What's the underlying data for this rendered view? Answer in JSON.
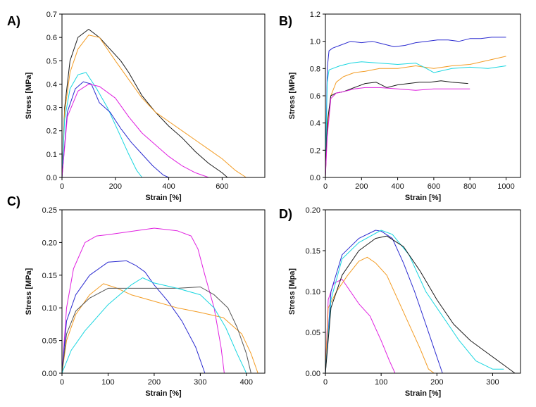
{
  "chart_data": [
    {
      "panel_label": "A)",
      "type": "line",
      "xlabel": "Strain [%]",
      "ylabel": "Stress [MPa]",
      "xlim": [
        0,
        760
      ],
      "ylim": [
        0,
        0.7
      ],
      "xticks": [
        0,
        200,
        400,
        600
      ],
      "yticks": [
        0.0,
        0.1,
        0.2,
        0.3,
        0.4,
        0.5,
        0.6,
        0.7
      ],
      "ytick_labels": [
        "0.0",
        "0.1",
        "0.2",
        "0.3",
        "0.4",
        "0.5",
        "0.6",
        "0.7"
      ],
      "series": [
        {
          "name": "black",
          "color": "#1a1a1a",
          "x": [
            0,
            10,
            30,
            60,
            100,
            140,
            180,
            220,
            250,
            300,
            350,
            400,
            450,
            500,
            550,
            600,
            620
          ],
          "y": [
            0,
            0.3,
            0.5,
            0.6,
            0.635,
            0.6,
            0.55,
            0.5,
            0.45,
            0.35,
            0.28,
            0.22,
            0.17,
            0.11,
            0.06,
            0.02,
            0
          ]
        },
        {
          "name": "orange",
          "color": "#f39c24",
          "x": [
            0,
            10,
            30,
            60,
            100,
            140,
            200,
            250,
            300,
            350,
            400,
            450,
            500,
            550,
            600,
            650,
            690
          ],
          "y": [
            0,
            0.28,
            0.45,
            0.55,
            0.61,
            0.6,
            0.5,
            0.42,
            0.34,
            0.28,
            0.24,
            0.2,
            0.16,
            0.12,
            0.08,
            0.03,
            0
          ]
        },
        {
          "name": "cyan",
          "color": "#19d6e0",
          "x": [
            0,
            10,
            30,
            60,
            90,
            130,
            170,
            210,
            250,
            280,
            300
          ],
          "y": [
            0,
            0.25,
            0.38,
            0.44,
            0.45,
            0.38,
            0.3,
            0.2,
            0.1,
            0.03,
            0
          ]
        },
        {
          "name": "blue",
          "color": "#2b2bd0",
          "x": [
            0,
            20,
            50,
            80,
            110,
            140,
            180,
            220,
            260,
            300,
            340,
            380,
            400
          ],
          "y": [
            0,
            0.28,
            0.38,
            0.41,
            0.4,
            0.32,
            0.28,
            0.21,
            0.15,
            0.1,
            0.05,
            0.01,
            0
          ]
        },
        {
          "name": "magenta",
          "color": "#e020e0",
          "x": [
            0,
            20,
            60,
            100,
            140,
            200,
            250,
            300,
            350,
            400,
            450,
            500,
            550
          ],
          "y": [
            0,
            0.26,
            0.37,
            0.4,
            0.39,
            0.34,
            0.26,
            0.19,
            0.14,
            0.09,
            0.05,
            0.02,
            0
          ]
        }
      ]
    },
    {
      "panel_label": "B)",
      "type": "line",
      "xlabel": "Strain [%]",
      "ylabel": "Stress [MPa]",
      "xlim": [
        0,
        1080
      ],
      "ylim": [
        0,
        1.2
      ],
      "xticks": [
        0,
        200,
        400,
        600,
        800,
        1000
      ],
      "yticks": [
        0.0,
        0.2,
        0.4,
        0.6,
        0.8,
        1.0,
        1.2
      ],
      "ytick_labels": [
        "0.0",
        "0.2",
        "0.4",
        "0.6",
        "0.8",
        "1.0",
        "1.2"
      ],
      "series": [
        {
          "name": "blue",
          "color": "#2b2bd0",
          "x": [
            0,
            10,
            20,
            40,
            80,
            140,
            200,
            260,
            320,
            380,
            440,
            500,
            560,
            620,
            680,
            740,
            800,
            860,
            920,
            1000
          ],
          "y": [
            0,
            0.8,
            0.93,
            0.95,
            0.97,
            1.0,
            0.99,
            1.0,
            0.98,
            0.96,
            0.97,
            0.99,
            1.0,
            1.01,
            1.01,
            1.0,
            1.02,
            1.02,
            1.03,
            1.03
          ]
        },
        {
          "name": "orange",
          "color": "#f39c24",
          "x": [
            0,
            10,
            30,
            60,
            100,
            160,
            220,
            300,
            400,
            500,
            600,
            700,
            800,
            900,
            1000
          ],
          "y": [
            0,
            0.35,
            0.6,
            0.7,
            0.74,
            0.77,
            0.78,
            0.8,
            0.8,
            0.82,
            0.8,
            0.82,
            0.83,
            0.86,
            0.89
          ]
        },
        {
          "name": "cyan",
          "color": "#19d6e0",
          "x": [
            0,
            10,
            20,
            40,
            80,
            140,
            200,
            300,
            400,
            500,
            560,
            600,
            700,
            800,
            900,
            1000
          ],
          "y": [
            0,
            0.7,
            0.79,
            0.8,
            0.82,
            0.84,
            0.85,
            0.84,
            0.83,
            0.84,
            0.8,
            0.77,
            0.8,
            0.81,
            0.8,
            0.82
          ]
        },
        {
          "name": "black",
          "color": "#1a1a1a",
          "x": [
            0,
            10,
            30,
            60,
            100,
            160,
            220,
            280,
            340,
            400,
            460,
            520,
            580,
            640,
            700,
            790
          ],
          "y": [
            0,
            0.4,
            0.6,
            0.62,
            0.63,
            0.66,
            0.69,
            0.7,
            0.66,
            0.68,
            0.69,
            0.7,
            0.7,
            0.71,
            0.7,
            0.69
          ]
        },
        {
          "name": "magenta",
          "color": "#e020e0",
          "x": [
            0,
            10,
            30,
            60,
            100,
            160,
            220,
            300,
            400,
            500,
            600,
            700,
            800
          ],
          "y": [
            0,
            0.3,
            0.58,
            0.62,
            0.63,
            0.65,
            0.66,
            0.66,
            0.65,
            0.64,
            0.65,
            0.65,
            0.65
          ]
        }
      ]
    },
    {
      "panel_label": "C)",
      "type": "line",
      "xlabel": "Strain [%]",
      "ylabel": "Stress [MPa]",
      "xlim": [
        0,
        440
      ],
      "ylim": [
        0,
        0.25
      ],
      "xticks": [
        0,
        100,
        200,
        300,
        400
      ],
      "yticks": [
        0.0,
        0.05,
        0.1,
        0.15,
        0.2,
        0.25
      ],
      "ytick_labels": [
        "0.00",
        "0.05",
        "0.10",
        "0.15",
        "0.20",
        "0.25"
      ],
      "series": [
        {
          "name": "magenta",
          "color": "#e020e0",
          "x": [
            0,
            10,
            25,
            50,
            75,
            100,
            150,
            200,
            250,
            280,
            295,
            310,
            330,
            345,
            352
          ],
          "y": [
            0,
            0.1,
            0.16,
            0.2,
            0.21,
            0.212,
            0.217,
            0.222,
            0.218,
            0.21,
            0.19,
            0.15,
            0.1,
            0.04,
            0
          ]
        },
        {
          "name": "blue",
          "color": "#2b2bd0",
          "x": [
            0,
            10,
            30,
            60,
            100,
            140,
            160,
            180,
            200,
            230,
            260,
            290,
            310
          ],
          "y": [
            0,
            0.08,
            0.12,
            0.15,
            0.17,
            0.172,
            0.165,
            0.155,
            0.135,
            0.11,
            0.08,
            0.04,
            0
          ]
        },
        {
          "name": "orange",
          "color": "#f39c24",
          "x": [
            0,
            10,
            30,
            60,
            90,
            120,
            150,
            200,
            250,
            300,
            350,
            390,
            410,
            425
          ],
          "y": [
            0,
            0.05,
            0.09,
            0.12,
            0.137,
            0.13,
            0.12,
            0.11,
            0.1,
            0.093,
            0.085,
            0.06,
            0.03,
            0
          ]
        },
        {
          "name": "gray",
          "color": "#555555",
          "x": [
            0,
            10,
            30,
            60,
            100,
            150,
            200,
            250,
            300,
            330,
            360,
            380,
            400,
            410
          ],
          "y": [
            0,
            0.06,
            0.095,
            0.115,
            0.13,
            0.13,
            0.13,
            0.13,
            0.132,
            0.12,
            0.1,
            0.07,
            0.03,
            0
          ]
        },
        {
          "name": "cyan",
          "color": "#19d6e0",
          "x": [
            0,
            20,
            50,
            100,
            150,
            175,
            200,
            250,
            300,
            330,
            355,
            380,
            400
          ],
          "y": [
            0,
            0.035,
            0.065,
            0.105,
            0.135,
            0.146,
            0.138,
            0.13,
            0.12,
            0.1,
            0.07,
            0.03,
            0
          ]
        }
      ]
    },
    {
      "panel_label": "D)",
      "type": "line",
      "xlabel": "Strain [%]",
      "ylabel": "Stress [Mpa]",
      "xlim": [
        0,
        350
      ],
      "ylim": [
        0,
        0.2
      ],
      "xticks": [
        0,
        100,
        200,
        300
      ],
      "yticks": [
        0.0,
        0.05,
        0.1,
        0.15,
        0.2
      ],
      "ytick_labels": [
        "0.00",
        "0.05",
        "0.10",
        "0.15",
        "0.20"
      ],
      "series": [
        {
          "name": "magenta",
          "color": "#e020e0",
          "x": [
            0,
            5,
            15,
            30,
            45,
            60,
            80,
            100,
            115,
            125
          ],
          "y": [
            0,
            0.09,
            0.11,
            0.115,
            0.1,
            0.085,
            0.07,
            0.04,
            0.015,
            0
          ]
        },
        {
          "name": "orange",
          "color": "#f39c24",
          "x": [
            0,
            5,
            20,
            40,
            60,
            75,
            90,
            110,
            130,
            150,
            170,
            185,
            195
          ],
          "y": [
            0,
            0.08,
            0.1,
            0.12,
            0.137,
            0.142,
            0.135,
            0.12,
            0.09,
            0.06,
            0.03,
            0.005,
            0
          ]
        },
        {
          "name": "blue",
          "color": "#2b2bd0",
          "x": [
            0,
            10,
            30,
            60,
            90,
            100,
            120,
            140,
            160,
            180,
            195,
            210
          ],
          "y": [
            0,
            0.1,
            0.145,
            0.165,
            0.175,
            0.174,
            0.165,
            0.135,
            0.1,
            0.06,
            0.03,
            0
          ]
        },
        {
          "name": "cyan",
          "color": "#19d6e0",
          "x": [
            0,
            10,
            30,
            60,
            100,
            120,
            150,
            180,
            210,
            240,
            270,
            300,
            320
          ],
          "y": [
            0,
            0.09,
            0.14,
            0.16,
            0.175,
            0.17,
            0.145,
            0.1,
            0.07,
            0.04,
            0.015,
            0.005,
            0.005
          ]
        },
        {
          "name": "black",
          "color": "#1a1a1a",
          "x": [
            0,
            10,
            30,
            60,
            90,
            110,
            140,
            170,
            200,
            230,
            260,
            290,
            320,
            340
          ],
          "y": [
            0,
            0.08,
            0.12,
            0.15,
            0.165,
            0.168,
            0.155,
            0.125,
            0.09,
            0.06,
            0.04,
            0.025,
            0.01,
            0
          ]
        }
      ]
    }
  ]
}
